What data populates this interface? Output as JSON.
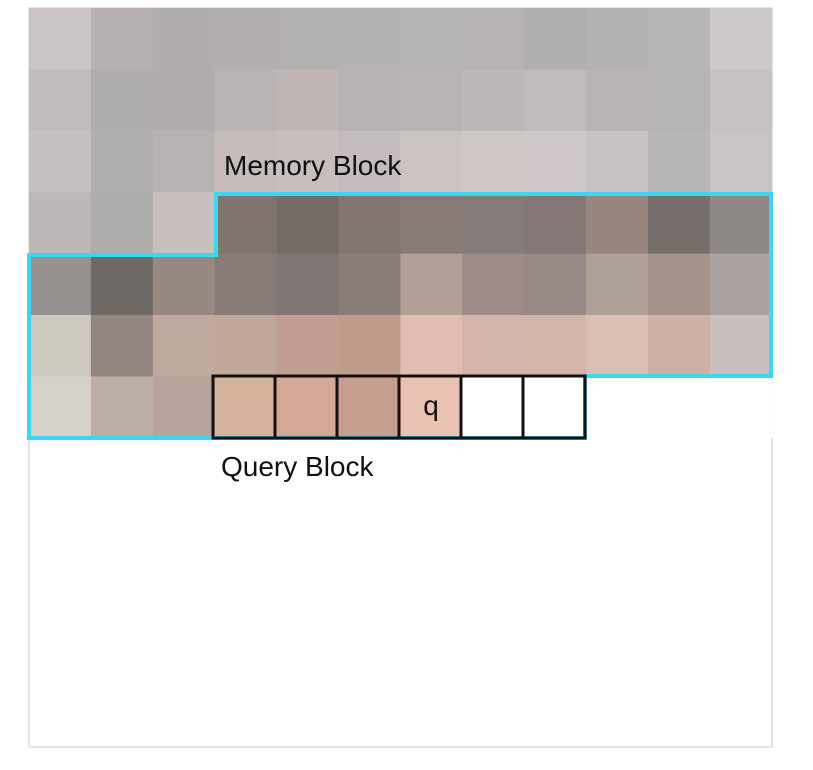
{
  "labels": {
    "memory_block": "Memory Block",
    "query_block": "Query Block",
    "query_pixel": "q"
  },
  "grid": {
    "rows": 7,
    "cols": 12,
    "cells": [
      [
        "#cac4c4",
        "#b6b1b0",
        "#b1adad",
        "#b3afb0",
        "#b3b0b0",
        "#b4b1b1",
        "#b6b3b3",
        "#b6b3b2",
        "#b1aeae",
        "#b4b1b1",
        "#b8b5b5",
        "#cfcaca"
      ],
      [
        "#c1bcbb",
        "#b0adad",
        "#b1adad",
        "#b9b5b5",
        "#bfb6b5",
        "#b6b2b2",
        "#b8b4b4",
        "#bcb8b8",
        "#c1bcbc",
        "#b8b4b4",
        "#b7b4b4",
        "#c6c2c2"
      ],
      [
        "#c6c1c1",
        "#b1aeae",
        "#b6b2b2",
        "#c5bcbb",
        "#c7bebd",
        "#c4bcbc",
        "#cbc2c2",
        "#cfc6c6",
        "#d0c8c8",
        "#c8c2c2",
        "#b9b6b6",
        "#c8c4c4"
      ],
      [
        "#bdb8b8",
        "#afacac",
        "#c8c0bf",
        "#80746f",
        "#746a66",
        "#847571",
        "#887a76",
        "#857b78",
        "#837876",
        "#978680",
        "#766e6b",
        "#8e8886"
      ],
      [
        "#979190",
        "#6f6966",
        "#978982",
        "#867b77",
        "#807674",
        "#8b7d78",
        "#b0a096",
        "#9e8b89",
        "#998986",
        "#b0a197",
        "#a59289",
        "#a9a2a0"
      ],
      [
        "#cdc9bf",
        "#928681",
        "#c1aa9f",
        "#c2a89b",
        "#c19f90",
        "#c09c8c",
        "#e0bdae",
        "#d3b3ab",
        "#d3b5aa",
        "#dbbfb3",
        "#cfb0a4",
        "#c9c0bd"
      ],
      [
        "#d5d3c9",
        "#bdaea6",
        "#b9a49b",
        "#d3b29e",
        "#d4a897",
        "#c89e91",
        "#eac2b4",
        "#ffffff",
        "#ffffff",
        "#ffffff",
        "#ffffff",
        "#ffffff"
      ]
    ]
  },
  "colors": {
    "memory_outline": "#3ad6f2",
    "query_outline": "#111111",
    "frame_border": "#c9c9c9"
  }
}
